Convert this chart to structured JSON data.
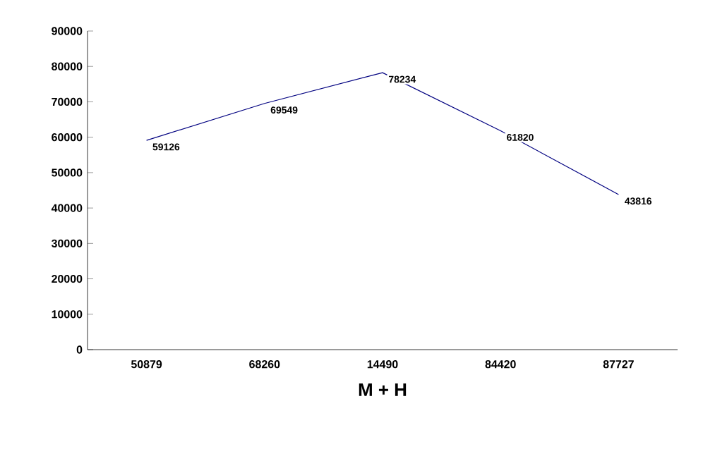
{
  "chart_data": {
    "type": "line",
    "xlabel": "M + H",
    "categories": [
      "50879",
      "68260",
      "14490",
      "84420",
      "87727"
    ],
    "series": [
      {
        "color": "#000080",
        "values": [
          59126,
          69549,
          78234,
          61820,
          43816
        ]
      }
    ],
    "ylim": [
      0,
      90000
    ],
    "yticks": [
      0,
      10000,
      20000,
      30000,
      40000,
      50000,
      60000,
      70000,
      80000,
      90000
    ],
    "data_labels": true,
    "marker": "none",
    "line_style": "solid",
    "grid": false
  }
}
